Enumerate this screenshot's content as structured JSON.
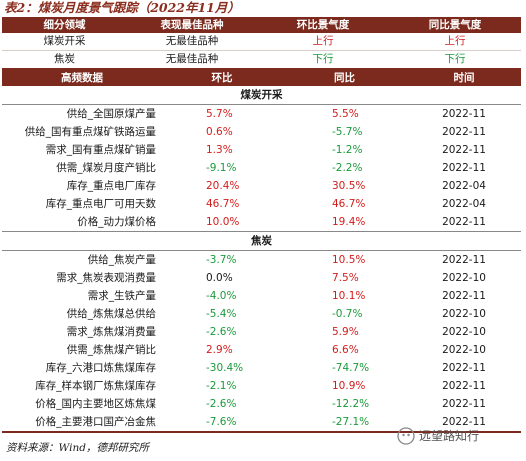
{
  "title": "表2：煤炭月度景气跟踪（2022年11月）",
  "summary": {
    "headers": [
      "细分领域",
      "表现最佳品种",
      "环比景气度",
      "同比景气度"
    ],
    "rows": [
      {
        "field": "煤炭开采",
        "best": "无最佳品种",
        "mom": "上行",
        "mom_dir": "up",
        "yoy": "上行",
        "yoy_dir": "up"
      },
      {
        "field": "焦炭",
        "best": "无最佳品种",
        "mom": "下行",
        "mom_dir": "down",
        "yoy": "下行",
        "yoy_dir": "down"
      }
    ]
  },
  "detail": {
    "headers": [
      "高频数据",
      "环比",
      "同比",
      "时间"
    ],
    "sections": [
      {
        "name": "煤炭开采",
        "rows": [
          {
            "label": "供给_全国原煤产量",
            "mom": "5.7%",
            "mom_dir": "up",
            "yoy": "5.5%",
            "yoy_dir": "up",
            "date": "2022-11"
          },
          {
            "label": "供给_国有重点煤矿铁路运量",
            "mom": "0.6%",
            "mom_dir": "up",
            "yoy": "-5.7%",
            "yoy_dir": "down",
            "date": "2022-11"
          },
          {
            "label": "需求_国有重点煤矿销量",
            "mom": "1.3%",
            "mom_dir": "up",
            "yoy": "-1.2%",
            "yoy_dir": "down",
            "date": "2022-11"
          },
          {
            "label": "供需_煤炭月度产销比",
            "mom": "-9.1%",
            "mom_dir": "down",
            "yoy": "-2.2%",
            "yoy_dir": "down",
            "date": "2022-11"
          },
          {
            "label": "库存_重点电厂库存",
            "mom": "20.4%",
            "mom_dir": "up",
            "yoy": "30.5%",
            "yoy_dir": "up",
            "date": "2022-04"
          },
          {
            "label": "库存_重点电厂可用天数",
            "mom": "46.7%",
            "mom_dir": "up",
            "yoy": "46.7%",
            "yoy_dir": "up",
            "date": "2022-04"
          },
          {
            "label": "价格_动力煤价格",
            "mom": "10.0%",
            "mom_dir": "up",
            "yoy": "19.4%",
            "yoy_dir": "up",
            "date": "2022-11"
          }
        ]
      },
      {
        "name": "焦炭",
        "rows": [
          {
            "label": "供给_焦炭产量",
            "mom": "-3.7%",
            "mom_dir": "down",
            "yoy": "10.5%",
            "yoy_dir": "up",
            "date": "2022-11"
          },
          {
            "label": "需求_焦炭表观消费量",
            "mom": "0.0%",
            "mom_dir": "flat",
            "yoy": "7.5%",
            "yoy_dir": "up",
            "date": "2022-10"
          },
          {
            "label": "需求_生铁产量",
            "mom": "-4.0%",
            "mom_dir": "down",
            "yoy": "10.1%",
            "yoy_dir": "up",
            "date": "2022-11"
          },
          {
            "label": "供给_炼焦煤总供给",
            "mom": "-5.4%",
            "mom_dir": "down",
            "yoy": "-0.7%",
            "yoy_dir": "down",
            "date": "2022-10"
          },
          {
            "label": "需求_炼焦煤消费量",
            "mom": "-2.6%",
            "mom_dir": "down",
            "yoy": "5.9%",
            "yoy_dir": "up",
            "date": "2022-10"
          },
          {
            "label": "供需_炼焦煤产销比",
            "mom": "2.9%",
            "mom_dir": "up",
            "yoy": "6.6%",
            "yoy_dir": "up",
            "date": "2022-10"
          },
          {
            "label": "库存_六港口炼焦煤库存",
            "mom": "-30.4%",
            "mom_dir": "down",
            "yoy": "-74.7%",
            "yoy_dir": "down",
            "date": "2022-11"
          },
          {
            "label": "库存_样本钢厂炼焦煤库存",
            "mom": "-2.1%",
            "mom_dir": "down",
            "yoy": "10.9%",
            "yoy_dir": "up",
            "date": "2022-11"
          },
          {
            "label": "价格_国内主要地区炼焦煤",
            "mom": "-2.6%",
            "mom_dir": "down",
            "yoy": "-12.2%",
            "yoy_dir": "down",
            "date": "2022-11"
          },
          {
            "label": "价格_主要港口国产冶金焦",
            "mom": "-7.6%",
            "mom_dir": "down",
            "yoy": "-27.1%",
            "yoy_dir": "down",
            "date": "2022-11"
          }
        ]
      }
    ]
  },
  "source": "资料来源：Wind，德邦研究所",
  "watermark": "远望路知行",
  "colors": {
    "header_bg": "#7b2a1d",
    "up": "#d41c1c",
    "down": "#1a9a3a",
    "title": "#8b2e1f"
  }
}
